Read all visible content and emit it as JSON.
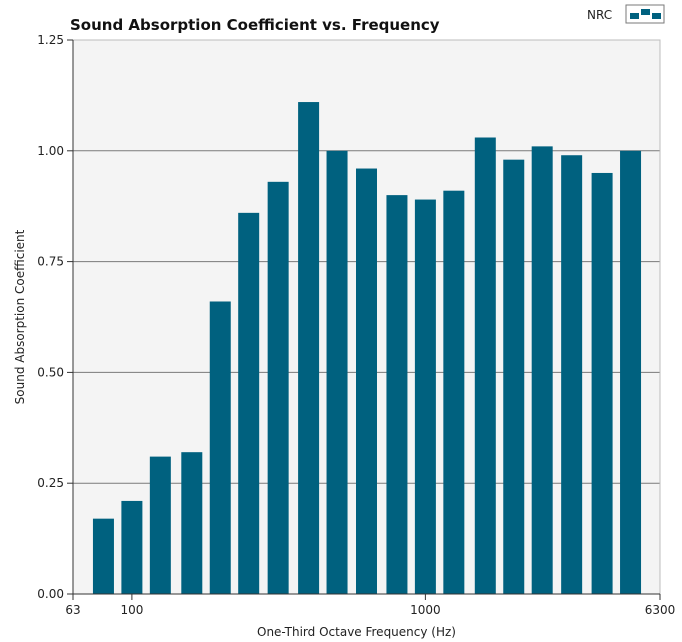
{
  "chart_data": {
    "type": "bar",
    "title": "Sound Absorption Coefficient  vs.  Frequency",
    "xlabel": "One-Third Octave Frequency (Hz)",
    "ylabel": "Sound Absorption Coefficient",
    "x_scale": "log",
    "x_range": [
      63,
      6300
    ],
    "x_tick_labels": [
      "63",
      "100",
      "1000",
      "6300"
    ],
    "x_tick_values": [
      63,
      100,
      1000,
      6300
    ],
    "ylim": [
      0,
      1.25
    ],
    "y_ticks": [
      "0.00",
      "0.25",
      "0.50",
      "0.75",
      "1.00",
      "1.25"
    ],
    "y_tick_values": [
      0,
      0.25,
      0.5,
      0.75,
      1.0,
      1.25
    ],
    "grid": true,
    "legend": {
      "position": "top-right",
      "label": "NRC"
    },
    "colors": {
      "bar": "#00617f",
      "plot_background": "#f4f4f4",
      "grid": "#7a7a7a"
    },
    "categories": [
      80,
      100,
      125,
      160,
      200,
      250,
      315,
      400,
      500,
      630,
      800,
      1000,
      1250,
      1600,
      2000,
      2500,
      3150,
      4000,
      5000
    ],
    "values": [
      0.17,
      0.21,
      0.31,
      0.32,
      0.66,
      0.86,
      0.93,
      1.11,
      1.0,
      0.96,
      0.9,
      0.89,
      0.91,
      1.03,
      0.98,
      1.01,
      0.99,
      0.95,
      1.0
    ]
  }
}
